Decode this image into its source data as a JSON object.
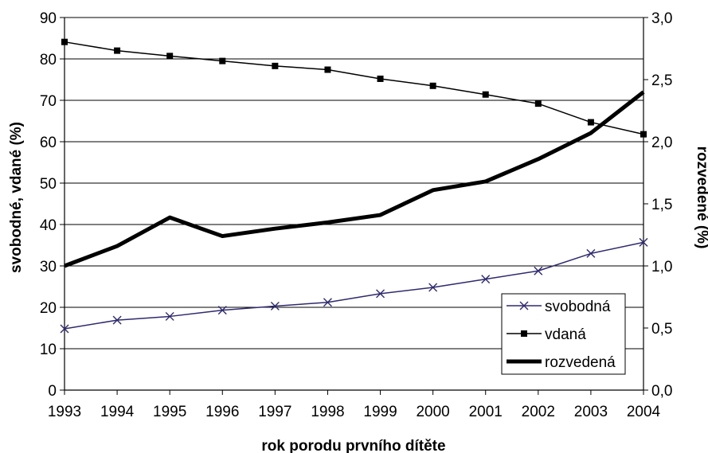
{
  "chart_data": {
    "type": "line",
    "title": "",
    "xlabel": "rok porodu prvního dítěte",
    "ylabel_left": "svobodné, vdané (%)",
    "ylabel_right": "rozvedené (%)",
    "categories": [
      "1993",
      "1994",
      "1995",
      "1996",
      "1997",
      "1998",
      "1999",
      "2000",
      "2001",
      "2002",
      "2003",
      "2004"
    ],
    "y_left": {
      "min": 0,
      "max": 90,
      "step": 10,
      "ticks": [
        "0",
        "10",
        "20",
        "30",
        "40",
        "50",
        "60",
        "70",
        "80",
        "90"
      ]
    },
    "y_right": {
      "min": 0,
      "max": 3,
      "step": 0.5,
      "ticks": [
        "0,0",
        "0,5",
        "1,0",
        "1,5",
        "2,0",
        "2,5",
        "3,0"
      ]
    },
    "grid": true,
    "legend_position": "bottom-right",
    "series": [
      {
        "name": "svobodná",
        "axis": "left",
        "marker": "x",
        "color": "#2e2a6e",
        "stroke_width": 1.5,
        "values": [
          14.8,
          16.9,
          17.8,
          19.3,
          20.3,
          21.2,
          23.3,
          24.8,
          26.8,
          28.8,
          33.0,
          35.7
        ]
      },
      {
        "name": "vdaná",
        "axis": "left",
        "marker": "square",
        "color": "#000000",
        "stroke_width": 1.5,
        "values": [
          84.1,
          82.0,
          80.7,
          79.5,
          78.3,
          77.4,
          75.2,
          73.5,
          71.4,
          69.2,
          64.7,
          61.8
        ]
      },
      {
        "name": "rozvedená",
        "axis": "right",
        "marker": "none",
        "color": "#000000",
        "stroke_width": 5,
        "values": [
          1.0,
          1.16,
          1.39,
          1.24,
          1.3,
          1.35,
          1.41,
          1.61,
          1.68,
          1.86,
          2.07,
          2.4
        ]
      }
    ]
  }
}
